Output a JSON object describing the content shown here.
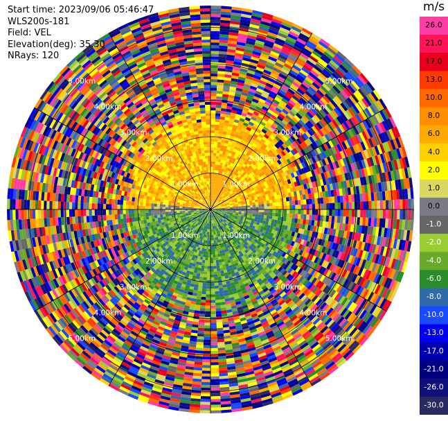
{
  "header": {
    "start_time": "Start time: 2023/09/06 05:46:47",
    "instrument": "WLS200s-181",
    "field": "Field: VEL",
    "elevation": "Elevation(deg): 35.30",
    "nrays": "NRays: 120"
  },
  "chart_data": {
    "type": "heatmap",
    "projection": "polar-ppi",
    "field": "VEL",
    "nrays": 120,
    "range_rings_km": [
      1.0,
      2.0,
      3.0,
      4.0,
      5.0
    ],
    "range_ring_labels": [
      "1.00km",
      "2.00km",
      "3.00km",
      "4.00km",
      "5.00km"
    ],
    "max_range_km": 5.6,
    "colorbar": {
      "unit": "m/s",
      "ticks": [
        "26.0",
        "21.0",
        "17.0",
        "13.0",
        "10.0",
        "8.0",
        "6.0",
        "4.0",
        "2.0",
        "1.0",
        "0.0",
        "-1.0",
        "-2.0",
        "-4.0",
        "-6.0",
        "-8.0",
        "-10.0",
        "-13.0",
        "-17.0",
        "-21.0",
        "-26.0",
        "-30.0"
      ],
      "colors": [
        "#ff3da6",
        "#ff1458",
        "#e8001c",
        "#ff3b00",
        "#ff6a00",
        "#ff8f00",
        "#ffaa00",
        "#ffd000",
        "#ffff00",
        "#d8d860",
        "#7b7b86",
        "#666666",
        "#9acd32",
        "#6aaa2a",
        "#2b8c2b",
        "#2f6aa9",
        "#1a4aff",
        "#0000ee",
        "#0000b0",
        "#000080",
        "#10107a",
        "#2a2a60"
      ]
    },
    "pattern": "near field (<~2.6 km): north half positive (yellow/orange 2-6 m/s), south half negative (green -2 to -6 m/s), grey band ~0 m/s along east-west; far field: noisy mixed colours"
  }
}
